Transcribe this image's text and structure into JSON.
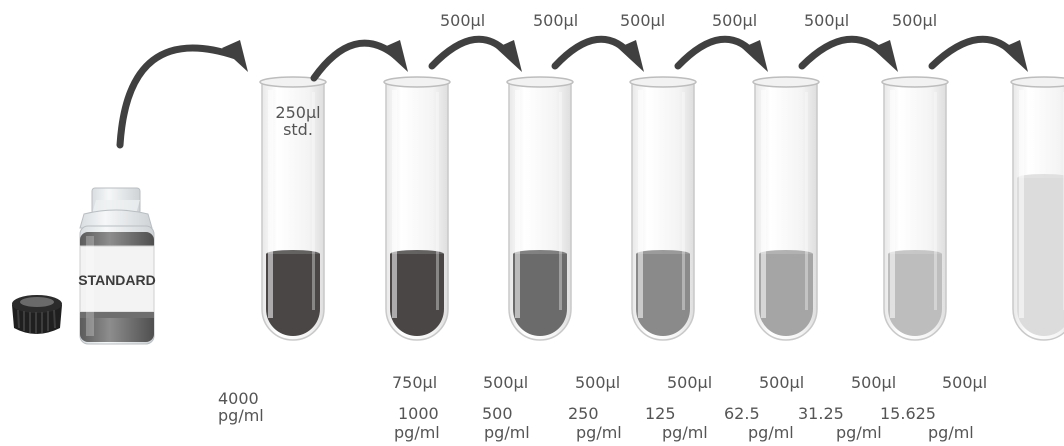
{
  "standard_label": "STANDARD",
  "first_tube_note": {
    "volume": "250µl",
    "unit": "std."
  },
  "transfer_labels": [
    "500µl",
    "500µl",
    "500µl",
    "500µl",
    "500µl",
    "500µl"
  ],
  "diluent_labels": [
    "750µl",
    "500µl",
    "500µl",
    "500µl",
    "500µl",
    "500µl",
    "500µl"
  ],
  "stock_concentration": {
    "value": "4000",
    "unit": "pg/ml"
  },
  "concentrations": [
    {
      "value": "1000",
      "unit": "pg/ml"
    },
    {
      "value": "500",
      "unit": "pg/ml"
    },
    {
      "value": "250",
      "unit": "pg/ml"
    },
    {
      "value": "125",
      "unit": "pg/ml"
    },
    {
      "value": "62.5",
      "unit": "pg/ml"
    },
    {
      "value": "31.25",
      "unit": "pg/ml"
    },
    {
      "value": "15.625",
      "unit": "pg/ml"
    }
  ],
  "liquid_colors": [
    "#4a4646",
    "#4a4646",
    "#6b6b6b",
    "#8a8a8a",
    "#a5a5a5",
    "#bdbdbd",
    "#dcdcdc"
  ]
}
